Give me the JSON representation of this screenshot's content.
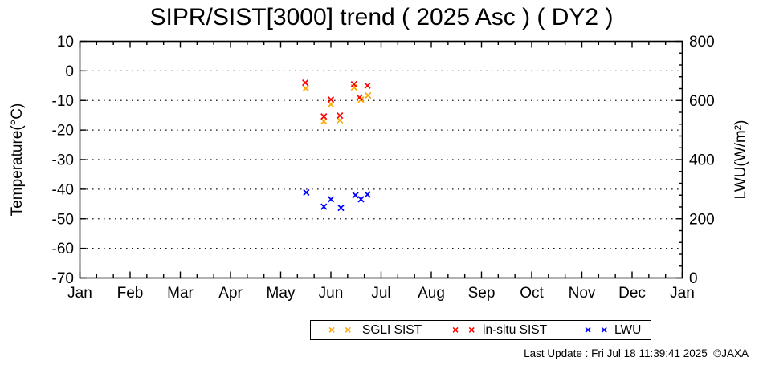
{
  "title": "SIPR/SIST[3000] trend ( 2025 Asc ) ( DY2 )",
  "footer": {
    "last_update": "Last Update : Fri Jul 18 11:39:41 2025  ©JAXA"
  },
  "legend": {
    "items": [
      {
        "label": "SGLI SIST",
        "color": "#ffa500",
        "marker": "x-cross-pair"
      },
      {
        "label": "in-situ SIST",
        "color": "#ff0000",
        "marker": "x-cross-pair"
      },
      {
        "label": "LWU",
        "color": "#0000ff",
        "marker": "x-cross-pair"
      }
    ]
  },
  "chart_data": {
    "type": "scatter",
    "title": "SIPR/SIST[3000] trend ( 2025 Asc ) ( DY2 )",
    "grid": "horizontal-dotted",
    "legend_position": "bottom-center-outside",
    "x_axis": {
      "tick_labels": [
        "Jan",
        "Feb",
        "Mar",
        "Apr",
        "May",
        "Jun",
        "Jul",
        "Aug",
        "Sep",
        "Oct",
        "Nov",
        "Dec",
        "Jan"
      ],
      "range": [
        0,
        12
      ],
      "unit": "month index (0 = Jan 1, 12 = next Jan 1)",
      "minor_ticks_per_month": 2
    },
    "y_left": {
      "label": "Temperature(°C)",
      "ticks": [
        10,
        0,
        -10,
        -20,
        -30,
        -40,
        -50,
        -60,
        -70
      ],
      "range": [
        -70,
        10
      ],
      "grid_lines_at": [
        0,
        -10,
        -20,
        -30,
        -40,
        -50,
        -60
      ]
    },
    "y_right": {
      "label": "LWU(W/m²)",
      "ticks": [
        800,
        600,
        400,
        200,
        0
      ],
      "range": [
        0,
        800
      ],
      "minor_tick_step": 40
    },
    "series": [
      {
        "name": "SGLI SIST",
        "color": "#ffa500",
        "axis": "left",
        "marker": "x",
        "points": [
          [
            4.5,
            -5.9
          ],
          [
            4.86,
            -17.0
          ],
          [
            5.0,
            -11.3
          ],
          [
            5.18,
            -16.7
          ],
          [
            5.46,
            -5.6
          ],
          [
            5.6,
            -9.7
          ],
          [
            5.74,
            -8.3
          ]
        ]
      },
      {
        "name": "in-situ SIST",
        "color": "#ff0000",
        "axis": "left",
        "marker": "x",
        "points": [
          [
            4.49,
            -4.0
          ],
          [
            4.86,
            -15.4
          ],
          [
            5.0,
            -9.7
          ],
          [
            5.18,
            -15.1
          ],
          [
            5.46,
            -4.5
          ],
          [
            5.57,
            -9.0
          ],
          [
            5.73,
            -5.0
          ]
        ]
      },
      {
        "name": "LWU",
        "color": "#0000ff",
        "axis": "right",
        "marker": "x",
        "points": [
          [
            4.51,
            289
          ],
          [
            4.86,
            241
          ],
          [
            5.0,
            266
          ],
          [
            5.2,
            237
          ],
          [
            5.49,
            280
          ],
          [
            5.6,
            266
          ],
          [
            5.73,
            282
          ]
        ]
      }
    ]
  }
}
